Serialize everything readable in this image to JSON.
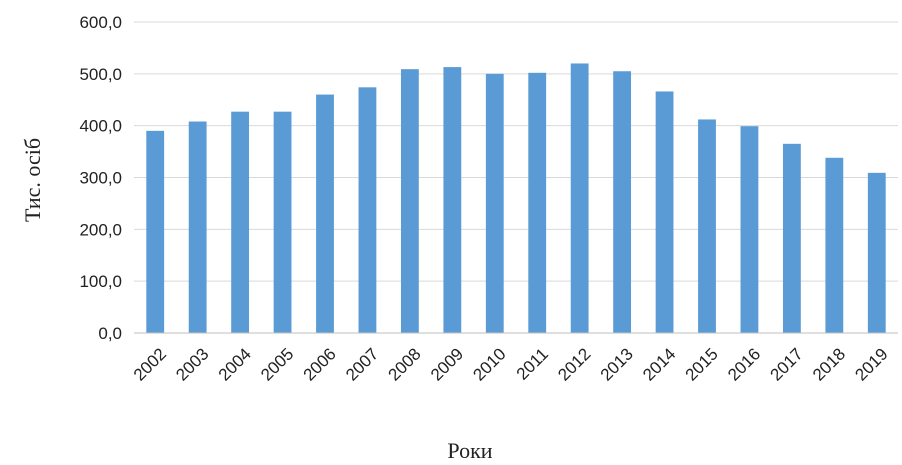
{
  "chart_data": {
    "type": "bar",
    "title": "",
    "xlabel": "Роки",
    "ylabel": "Тис. осіб",
    "categories": [
      "2002",
      "2003",
      "2004",
      "2005",
      "2006",
      "2007",
      "2008",
      "2009",
      "2010",
      "2011",
      "2012",
      "2013",
      "2014",
      "2015",
      "2016",
      "2017",
      "2018",
      "2019"
    ],
    "values": [
      390,
      408,
      427,
      427,
      460,
      474,
      509,
      513,
      500,
      502,
      520,
      505,
      466,
      412,
      399,
      365,
      338,
      309
    ],
    "ylim": [
      0,
      600
    ],
    "yticks": [
      "0,0",
      "100,0",
      "200,0",
      "300,0",
      "400,0",
      "500,0",
      "600,0"
    ],
    "grid": true,
    "legend": "none",
    "colors": {
      "bar": "#5b9bd5",
      "grid": "#d9d9d9",
      "axis": "#bfbfbf"
    }
  }
}
